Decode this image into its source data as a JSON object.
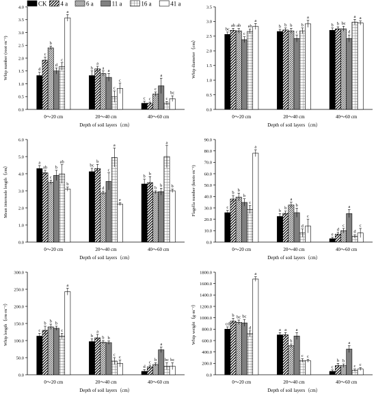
{
  "legend": [
    "CK",
    "4 a",
    "6 a",
    "11 a",
    "16 a",
    "41 a"
  ],
  "patterns": [
    "solid-black",
    "hatch-diagonal",
    "crosshatch",
    "solid-gray",
    "grid",
    "white"
  ],
  "colors": {
    "black": "#000000",
    "gray": "#808080",
    "white": "#ffffff"
  },
  "chart_data": [
    {
      "type": "bar",
      "panel": "whip-number",
      "ylabel": "Whip number (root·m⁻²)",
      "xlabel": "Depth of soil layers（cm）",
      "categories": [
        "0～20 cm",
        "20～40 cm",
        "40～60 cm"
      ],
      "ylim": [
        0,
        4.0
      ],
      "yticks": [
        "0.0",
        "0.5",
        "1.0",
        "1.5",
        "2.0",
        "2.5",
        "3.0",
        "3.5",
        "4.0"
      ],
      "series": [
        {
          "name": "CK",
          "values": [
            1.32,
            1.32,
            0.24
          ],
          "errors": [
            0.13,
            0.18,
            0.08
          ],
          "letters": [
            "d",
            "b",
            "c"
          ]
        },
        {
          "name": "4 a",
          "values": [
            1.92,
            1.58,
            0.24
          ],
          "errors": [
            0.12,
            0.1,
            0.05
          ],
          "letters": [
            "c",
            "a",
            "c"
          ]
        },
        {
          "name": "6 a",
          "values": [
            2.4,
            1.4,
            0.6
          ],
          "errors": [
            0.07,
            0.1,
            0.08
          ],
          "letters": [
            "b",
            "a",
            "c"
          ]
        },
        {
          "name": "11 a",
          "values": [
            1.5,
            1.25,
            0.92
          ],
          "errors": [
            0.12,
            0.15,
            0.3
          ],
          "letters": [
            "d",
            "a",
            "a"
          ]
        },
        {
          "name": "16 a",
          "values": [
            1.67,
            0.5,
            0.24
          ],
          "errors": [
            0.15,
            0.22,
            0.07
          ],
          "letters": [
            "c",
            "c",
            "c"
          ]
        },
        {
          "name": "41 a",
          "values": [
            3.57,
            0.82,
            0.42
          ],
          "errors": [
            0.13,
            0.2,
            0.11
          ],
          "letters": [
            "a",
            "c",
            "bc"
          ]
        }
      ]
    },
    {
      "type": "bar",
      "panel": "whip-diameter",
      "ylabel": "Whip diameter（cm）",
      "xlabel": "Depth of soil layers（cm）",
      "categories": [
        "0～20 cm",
        "20～40 cm",
        "40～60 cm"
      ],
      "ylim": [
        0,
        3.5
      ],
      "yticks": [
        "0.0",
        "0.5",
        "1.0",
        "1.5",
        "2.0",
        "2.5",
        "3.0",
        "3.5"
      ],
      "series": [
        {
          "name": "CK",
          "values": [
            2.56,
            2.66,
            2.7
          ],
          "errors": [
            0.08,
            0.07,
            0.08
          ],
          "letters": [
            "bc",
            "b",
            "b"
          ]
        },
        {
          "name": "4 a",
          "values": [
            2.7,
            2.71,
            2.75
          ],
          "errors": [
            0.07,
            0.07,
            0.07
          ],
          "letters": [
            "ab",
            "b",
            "b"
          ]
        },
        {
          "name": "6 a",
          "values": [
            2.68,
            2.68,
            2.75
          ],
          "errors": [
            0.08,
            0.09,
            0.09
          ],
          "letters": [
            "ab",
            "b",
            "bc"
          ]
        },
        {
          "name": "11 a",
          "values": [
            2.38,
            2.42,
            2.42
          ],
          "errors": [
            0.1,
            0.12,
            0.12
          ],
          "letters": [
            "c",
            "c",
            "d"
          ]
        },
        {
          "name": "16 a",
          "values": [
            2.66,
            2.68,
            2.98
          ],
          "errors": [
            0.08,
            0.1,
            0.09
          ],
          "letters": [
            "ab",
            "b",
            "a"
          ]
        },
        {
          "name": "41 a",
          "values": [
            2.83,
            2.92,
            2.95
          ],
          "errors": [
            0.1,
            0.12,
            0.07
          ],
          "letters": [
            "a",
            "a",
            "a"
          ]
        }
      ]
    },
    {
      "type": "bar",
      "panel": "internode-length",
      "ylabel": "Mean internode length（cm）",
      "xlabel": "Depth of soil layers（cm）",
      "categories": [
        "0～20 cm",
        "20～40 cm",
        "40～60 cm"
      ],
      "ylim": [
        0,
        6.0
      ],
      "yticks": [
        "0.0",
        "1.0",
        "2.0",
        "3.0",
        "4.0",
        "5.0",
        "6.0"
      ],
      "series": [
        {
          "name": "CK",
          "values": [
            4.3,
            4.12,
            3.4
          ],
          "errors": [
            0.18,
            0.2,
            0.28
          ],
          "letters": [
            "a",
            "bc",
            "b"
          ]
        },
        {
          "name": "4 a",
          "values": [
            4.05,
            4.3,
            3.48
          ],
          "errors": [
            0.15,
            0.25,
            0.35
          ],
          "letters": [
            "ab",
            "b",
            "b"
          ]
        },
        {
          "name": "6 a",
          "values": [
            3.5,
            2.88,
            2.92
          ],
          "errors": [
            0.12,
            0.1,
            0.08
          ],
          "letters": [
            "c",
            "d",
            "b"
          ]
        },
        {
          "name": "11 a",
          "values": [
            3.9,
            3.55,
            2.95
          ],
          "errors": [
            0.3,
            0.5,
            0.2
          ],
          "letters": [
            "b",
            "c",
            "b"
          ]
        },
        {
          "name": "16 a",
          "values": [
            3.98,
            4.95,
            5.0
          ],
          "errors": [
            0.55,
            0.55,
            0.65
          ],
          "letters": [
            "ab",
            "a",
            "a"
          ]
        },
        {
          "name": "41 a",
          "values": [
            3.1,
            2.22,
            3.0
          ],
          "errors": [
            0.12,
            0.08,
            0.1
          ],
          "letters": [
            "b",
            "e",
            "b"
          ]
        }
      ]
    },
    {
      "type": "bar",
      "panel": "flagella-number",
      "ylabel": "Flagella number (knots·m⁻²)",
      "xlabel": "Depth of soil layers（cm）",
      "categories": [
        "0～20 cm",
        "20～40 cm",
        "40～60 cm"
      ],
      "ylim": [
        0,
        90.0
      ],
      "yticks": [
        "0.0",
        "10.0",
        "20.0",
        "30.0",
        "40.0",
        "50.0",
        "60.0",
        "70.0",
        "80.0",
        "90.0"
      ],
      "series": [
        {
          "name": "CK",
          "values": [
            25.8,
            22.5,
            3.0
          ],
          "errors": [
            2.0,
            2.5,
            1.2
          ],
          "letters": [
            "c",
            "b",
            "e"
          ]
        },
        {
          "name": "4 a",
          "values": [
            37.8,
            25.2,
            7.0
          ],
          "errors": [
            3.0,
            2.0,
            1.5
          ],
          "letters": [
            "b",
            "b",
            "d"
          ]
        },
        {
          "name": "6 a",
          "values": [
            39.5,
            32.5,
            10.0
          ],
          "errors": [
            3.5,
            2.5,
            2.0
          ],
          "letters": [
            "b",
            "a",
            "c"
          ]
        },
        {
          "name": "11 a",
          "values": [
            34.8,
            25.8,
            25.0
          ],
          "errors": [
            3.2,
            4.0,
            3.5
          ],
          "letters": [
            "b",
            "b",
            "a"
          ]
        },
        {
          "name": "16 a",
          "values": [
            28.5,
            8.0,
            5.0
          ],
          "errors": [
            3.5,
            3.5,
            1.5
          ],
          "letters": [
            "c",
            "d",
            "d"
          ]
        },
        {
          "name": "41 a",
          "values": [
            78.0,
            14.0,
            8.0
          ],
          "errors": [
            3.0,
            6.0,
            4.0
          ],
          "letters": [
            "a",
            "c",
            "c"
          ]
        }
      ]
    },
    {
      "type": "bar",
      "panel": "whip-length",
      "ylabel": "Whip length（cm·m⁻²）",
      "xlabel": "Depth of soil layers（cm）",
      "categories": [
        "0～20 cm",
        "20～40 cm",
        "40～60 cm"
      ],
      "ylim": [
        0,
        300.0
      ],
      "yticks": [
        "0.0",
        "50.0",
        "100.0",
        "150.0",
        "200.0",
        "250.0",
        "300.0"
      ],
      "series": [
        {
          "name": "CK",
          "values": [
            113,
            97,
            10
          ],
          "errors": [
            8,
            8,
            5
          ],
          "letters": [
            "c",
            "b",
            "d"
          ]
        },
        {
          "name": "4 a",
          "values": [
            130,
            108,
            23
          ],
          "errors": [
            12,
            10,
            5
          ],
          "letters": [
            "b",
            "a",
            "c"
          ]
        },
        {
          "name": "6 a",
          "values": [
            140,
            95,
            30
          ],
          "errors": [
            8,
            5,
            5
          ],
          "letters": [
            "b",
            "b",
            "b"
          ]
        },
        {
          "name": "11 a",
          "values": [
            136,
            94,
            73
          ],
          "errors": [
            6,
            5,
            8
          ],
          "letters": [
            "b",
            "b",
            "a"
          ]
        },
        {
          "name": "16 a",
          "values": [
            113,
            40,
            25
          ],
          "errors": [
            8,
            10,
            10
          ],
          "letters": [
            "c",
            "c",
            "bc"
          ]
        },
        {
          "name": "41 a",
          "values": [
            243,
            33,
            25
          ],
          "errors": [
            10,
            10,
            10
          ],
          "letters": [
            "a",
            "c",
            "bc"
          ]
        }
      ]
    },
    {
      "type": "bar",
      "panel": "whip-weight",
      "ylabel": "Whip weight（g·m⁻²）",
      "xlabel": "Depth of soil layers（cm）",
      "categories": [
        "0～20 cm",
        "20～40 cm",
        "40～60 cm"
      ],
      "ylim": [
        0,
        1800.0
      ],
      "yticks": [
        "0.0",
        "200.0",
        "400.0",
        "600.0",
        "800.0",
        "1000.0",
        "1200.0",
        "1400.0",
        "1600.0",
        "1800.0"
      ],
      "series": [
        {
          "name": "CK",
          "values": [
            800,
            700,
            60
          ],
          "errors": [
            40,
            40,
            25
          ],
          "letters": [
            "cd",
            "a",
            "c"
          ]
        },
        {
          "name": "4 a",
          "values": [
            940,
            700,
            160
          ],
          "errors": [
            50,
            40,
            40
          ],
          "letters": [
            "b",
            "a",
            "b"
          ]
        },
        {
          "name": "6 a",
          "values": [
            920,
            510,
            160
          ],
          "errors": [
            40,
            30,
            30
          ],
          "letters": [
            "bc",
            "b",
            "b"
          ]
        },
        {
          "name": "11 a",
          "values": [
            910,
            680,
            450
          ],
          "errors": [
            60,
            60,
            60
          ],
          "letters": [
            "bc",
            "a",
            "a"
          ]
        },
        {
          "name": "16 a",
          "values": [
            720,
            250,
            80
          ],
          "errors": [
            50,
            30,
            20
          ],
          "letters": [
            "d",
            "c",
            "c"
          ]
        },
        {
          "name": "41 a",
          "values": [
            1680,
            245,
            100
          ],
          "errors": [
            40,
            25,
            25
          ],
          "letters": [
            "a",
            "c",
            "c"
          ]
        }
      ]
    }
  ]
}
